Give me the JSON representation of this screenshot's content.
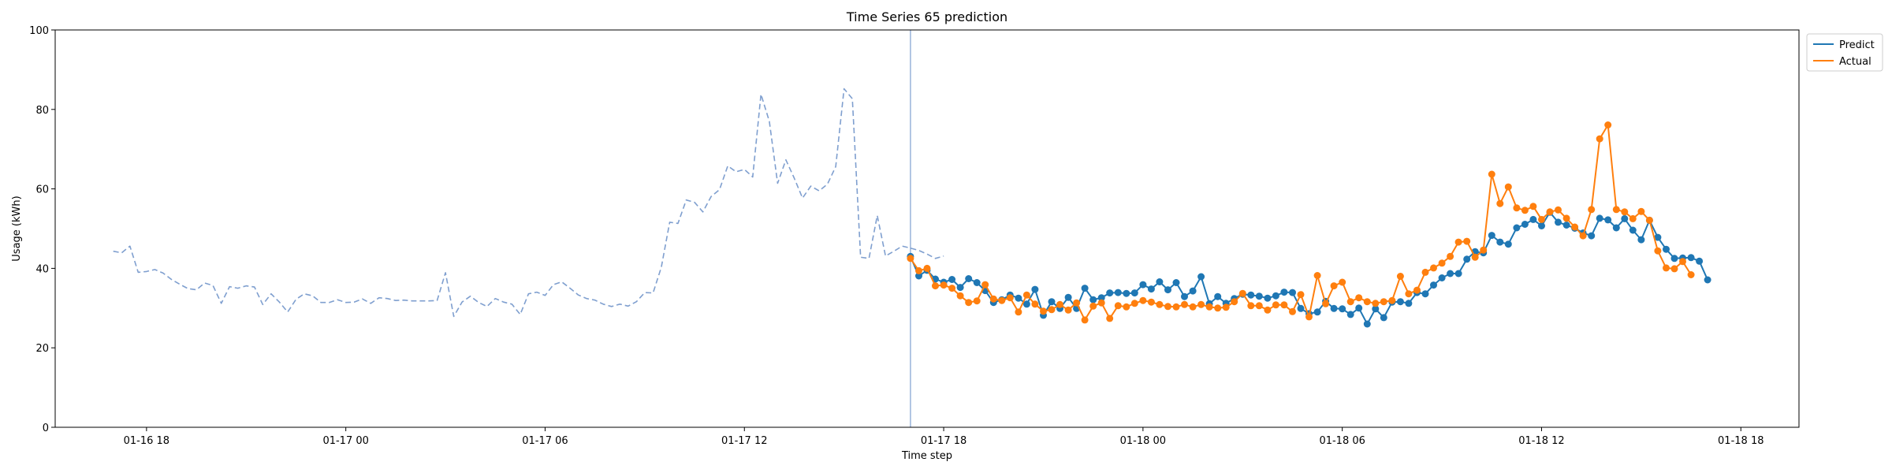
{
  "chart_data": {
    "type": "line",
    "title": "Time Series 65 prediction",
    "xlabel": "Time step",
    "ylabel": "Usage (kWh)",
    "ylim": [
      0,
      100
    ],
    "yticks": [
      0,
      20,
      40,
      60,
      80,
      100
    ],
    "xlim": [
      "2024-01-16 15:15",
      "2024-01-18 19:45"
    ],
    "xticks": [
      {
        "label": "01-16 18",
        "t": "2024-01-16 18:00"
      },
      {
        "label": "01-17 00",
        "t": "2024-01-17 00:00"
      },
      {
        "label": "01-17 06",
        "t": "2024-01-17 06:00"
      },
      {
        "label": "01-17 12",
        "t": "2024-01-17 12:00"
      },
      {
        "label": "01-17 18",
        "t": "2024-01-17 18:00"
      },
      {
        "label": "01-18 00",
        "t": "2024-01-18 00:00"
      },
      {
        "label": "01-18 06",
        "t": "2024-01-18 06:00"
      },
      {
        "label": "01-18 12",
        "t": "2024-01-18 12:00"
      },
      {
        "label": "01-18 18",
        "t": "2024-01-18 18:00"
      }
    ],
    "legend_position": "top-right, outside plot",
    "grid": false,
    "forecast_start": "2024-01-17 17:00",
    "colors": {
      "history": "#7f9fcf",
      "predict": "#1f77b4",
      "actual": "#ff7f0e",
      "divider": "#7f9fcf"
    },
    "series": [
      {
        "name": "",
        "style": "dashed",
        "start": "2024-01-16 17:00",
        "interval_minutes": 15,
        "values": [
          44.3,
          43.9,
          45.6,
          39.0,
          39.2,
          39.7,
          38.8,
          37.2,
          36.0,
          34.9,
          34.6,
          36.3,
          35.7,
          31.2,
          35.4,
          35.0,
          35.6,
          35.3,
          30.9,
          33.6,
          31.5,
          29.0,
          32.2,
          33.6,
          33.1,
          31.4,
          31.4,
          32.1,
          31.4,
          31.5,
          32.3,
          31.2,
          32.6,
          32.4,
          31.9,
          32.0,
          31.8,
          31.8,
          31.8,
          31.9,
          38.9,
          27.9,
          31.5,
          33.0,
          31.4,
          30.4,
          32.4,
          31.5,
          31.0,
          28.4,
          33.6,
          34.0,
          33.2,
          35.9,
          36.6,
          35.0,
          33.3,
          32.4,
          32.0,
          31.0,
          30.4,
          31.0,
          30.5,
          31.6,
          33.9,
          33.8,
          40.3,
          51.6,
          51.3,
          57.2,
          56.6,
          54.2,
          58.1,
          59.8,
          65.8,
          64.3,
          64.9,
          63.0,
          83.8,
          77.0,
          61.4,
          67.3,
          62.7,
          57.7,
          60.7,
          59.5,
          61.2,
          65.6,
          85.2,
          82.7,
          42.8,
          42.5,
          53.3,
          43.1,
          44.3,
          45.6,
          45.1,
          44.5,
          43.6,
          42.5,
          43.1
        ]
      },
      {
        "name": "Predict",
        "start": "2024-01-17 17:00",
        "interval_minutes": 15,
        "values": [
          43.0,
          38.1,
          39.5,
          37.3,
          36.5,
          37.2,
          35.2,
          37.4,
          36.4,
          34.4,
          31.4,
          32.1,
          33.3,
          32.5,
          31.0,
          34.7,
          28.2,
          31.6,
          29.9,
          32.7,
          29.9,
          35.0,
          32.1,
          32.6,
          33.8,
          33.9,
          33.7,
          33.8,
          35.9,
          34.8,
          36.6,
          34.6,
          36.4,
          32.9,
          34.3,
          37.9,
          31.1,
          32.9,
          31.2,
          32.4,
          33.5,
          33.3,
          33.0,
          32.5,
          33.1,
          34.0,
          33.9,
          29.9,
          28.6,
          29.0,
          31.7,
          29.9,
          29.8,
          28.4,
          30.0,
          26.0,
          29.8,
          27.6,
          31.5,
          31.6,
          31.2,
          33.9,
          33.6,
          35.8,
          37.6,
          38.7,
          38.7,
          42.3,
          44.2,
          43.9,
          48.3,
          46.6,
          46.1,
          50.2,
          51.1,
          52.3,
          50.7,
          54.1,
          51.6,
          50.9,
          50.1,
          48.9,
          48.2,
          52.6,
          52.2,
          50.2,
          52.5,
          49.6,
          47.2,
          52.1,
          47.8,
          44.8,
          42.5,
          42.6,
          42.7,
          41.8,
          37.1
        ]
      },
      {
        "name": "Actual",
        "start": "2024-01-17 17:00",
        "interval_minutes": 15,
        "values": [
          42.5,
          39.4,
          40.0,
          35.6,
          35.8,
          35.0,
          33.1,
          31.4,
          31.8,
          35.9,
          32.3,
          31.9,
          32.6,
          29.0,
          33.3,
          31.0,
          29.2,
          29.6,
          30.9,
          29.5,
          31.3,
          27.0,
          30.5,
          31.3,
          27.4,
          30.6,
          30.3,
          31.2,
          31.9,
          31.5,
          30.9,
          30.4,
          30.3,
          30.9,
          30.3,
          30.9,
          30.3,
          30.0,
          30.2,
          31.6,
          33.7,
          30.6,
          30.6,
          29.5,
          30.8,
          30.8,
          29.1,
          33.4,
          27.8,
          38.2,
          31.1,
          35.6,
          36.5,
          31.6,
          32.6,
          31.6,
          31.2,
          31.6,
          31.9,
          38.0,
          33.6,
          34.5,
          39.0,
          40.1,
          41.3,
          43.0,
          46.6,
          46.8,
          42.8,
          44.6,
          63.7,
          56.3,
          60.5,
          55.2,
          54.6,
          55.6,
          52.3,
          54.2,
          54.7,
          52.6,
          50.4,
          48.2,
          54.8,
          72.6,
          76.1,
          54.8,
          54.2,
          52.5,
          54.3,
          52.1,
          44.4,
          40.1,
          39.9,
          41.7,
          38.4
        ]
      }
    ]
  }
}
